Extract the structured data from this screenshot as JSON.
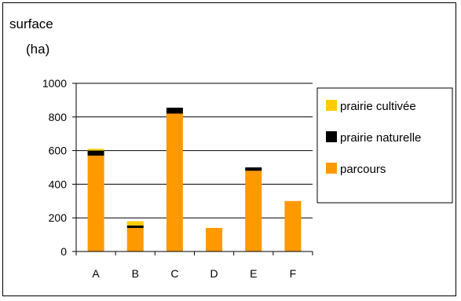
{
  "chart_data": {
    "type": "bar",
    "stacked": true,
    "ylabel_line1": "surface",
    "ylabel_line2": "(ha)",
    "categories": [
      "A",
      "B",
      "C",
      "D",
      "E",
      "F"
    ],
    "ylim": [
      0,
      1000
    ],
    "yticks": [
      0,
      200,
      400,
      600,
      800,
      1000
    ],
    "grid": true,
    "legend_position": "right",
    "series": [
      {
        "name": "parcours",
        "color": "#FF9900",
        "values": [
          570,
          140,
          820,
          140,
          480,
          300
        ]
      },
      {
        "name": "prairie naturelle",
        "color": "#000000",
        "values": [
          30,
          15,
          35,
          0,
          20,
          0
        ]
      },
      {
        "name": "prairie cultivée",
        "color": "#FFCC00",
        "values": [
          10,
          25,
          0,
          0,
          0,
          0
        ]
      }
    ],
    "legend_order": [
      "prairie cultivée",
      "prairie naturelle",
      "parcours"
    ]
  }
}
